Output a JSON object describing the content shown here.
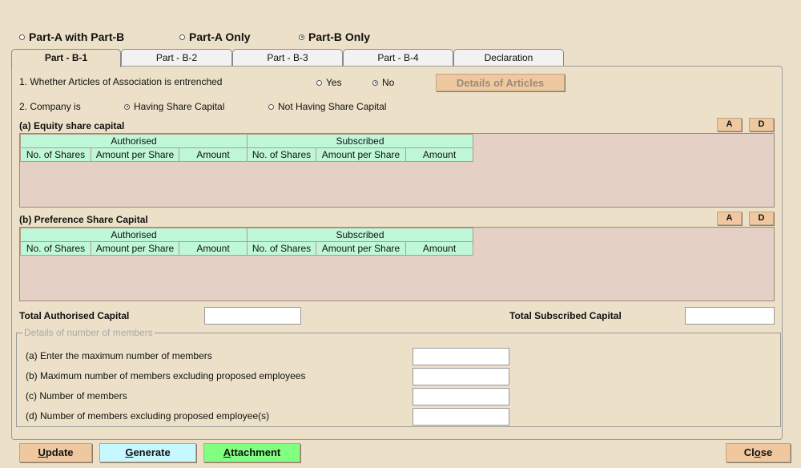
{
  "mode_options": [
    {
      "label": "Part-A with Part-B",
      "selected": false
    },
    {
      "label": "Part-A Only",
      "selected": false
    },
    {
      "label": "Part-B Only",
      "selected": true
    }
  ],
  "tabs": [
    "Part - B-1",
    "Part - B-2",
    "Part - B-3",
    "Part - B-4",
    "Declaration"
  ],
  "active_tab": "Part - B-1",
  "q1": {
    "label": "1. Whether Articles of Association is entrenched",
    "yes": "Yes",
    "no": "No",
    "selected": "No",
    "details_button": "Details of Articles"
  },
  "q2": {
    "label": "2. Company is",
    "opt1": "Having Share Capital",
    "opt2": "Not Having Share Capital",
    "selected": "Having Share Capital"
  },
  "equity": {
    "title": "(a) Equity share capital",
    "add": "A",
    "delete": "D"
  },
  "preference": {
    "title": "(b) Preference Share Capital",
    "add": "A",
    "delete": "D"
  },
  "table": {
    "groups": [
      "Authorised",
      "Subscribed"
    ],
    "columns": [
      "No. of Shares",
      "Amount per Share",
      "Amount",
      "No. of Shares",
      "Amount per Share",
      "Amount"
    ]
  },
  "totals": {
    "authorised_label": "Total Authorised Capital",
    "authorised_value": "",
    "subscribed_label": "Total Subscribed Capital",
    "subscribed_value": ""
  },
  "members": {
    "legend": "Details of number of members",
    "fields": [
      {
        "label": "(a) Enter the maximum number of members",
        "value": ""
      },
      {
        "label": "(b) Maximum number of members excluding proposed employees",
        "value": ""
      },
      {
        "label": "(c) Number of members",
        "value": ""
      },
      {
        "label": "(d) Number of members excluding proposed employee(s)",
        "value": ""
      }
    ]
  },
  "buttons": {
    "update_u": "U",
    "update": "pdate",
    "generate_u": "G",
    "generate": "enerate",
    "attachment_u": "A",
    "attachment": "ttachment",
    "close_a": "Cl",
    "close_u": "o",
    "close_b": "se"
  },
  "colors": {
    "background": "#ece1c8",
    "grid": "#e4d0c4",
    "header": "#bff8d8",
    "button": "#f0c8a0",
    "generate": "#c8f8ff",
    "attachment": "#80ff80"
  }
}
